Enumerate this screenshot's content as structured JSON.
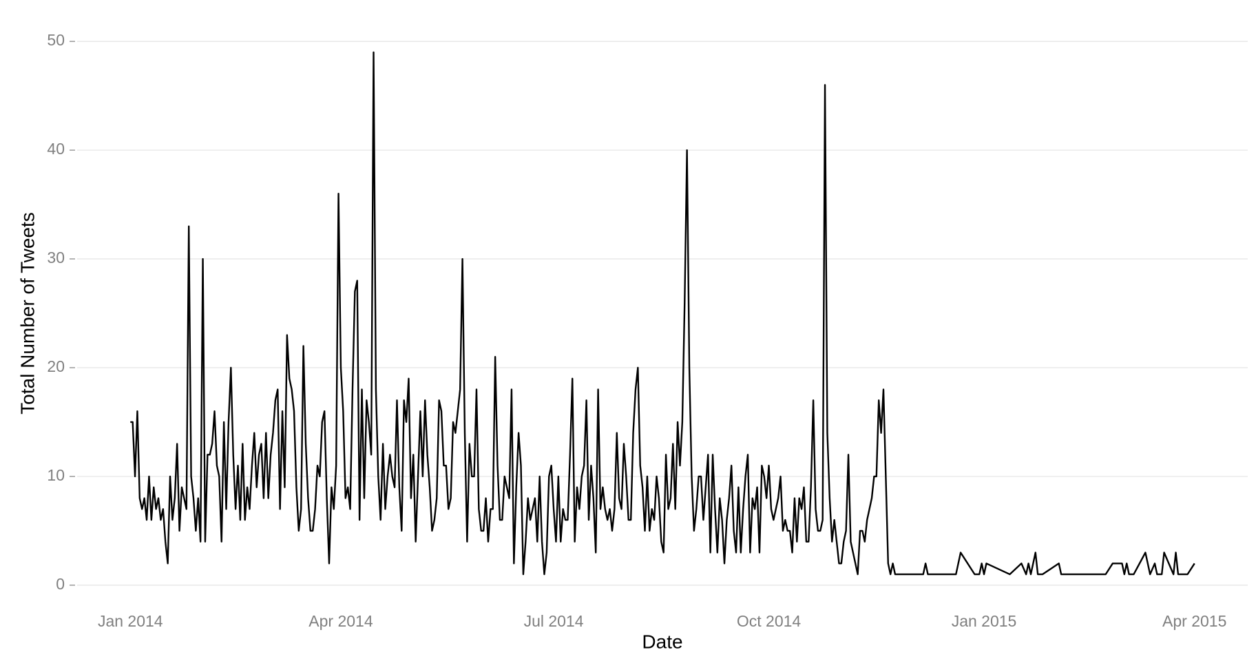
{
  "chart_data": {
    "type": "line",
    "x_label": "Date",
    "y_label": "Total Number of Tweets",
    "x": [
      0,
      1,
      2,
      3,
      4,
      5,
      6,
      7,
      8,
      9,
      10,
      11,
      12,
      13,
      14,
      15,
      16,
      17,
      18,
      19,
      20,
      21,
      22,
      23,
      24,
      25,
      26,
      27,
      28,
      29,
      30,
      31,
      32,
      33,
      34,
      35,
      36,
      37,
      38,
      39,
      40,
      41,
      42,
      43,
      44,
      45,
      46,
      47,
      48,
      49,
      50,
      51,
      52,
      53,
      54,
      55,
      56,
      57,
      58,
      59,
      60,
      61,
      62,
      63,
      64,
      65,
      66,
      67,
      68,
      69,
      70,
      71,
      72,
      73,
      74,
      75,
      76,
      77,
      78,
      79,
      80,
      81,
      82,
      83,
      84,
      85,
      86,
      87,
      88,
      89,
      90,
      91,
      92,
      93,
      94,
      95,
      96,
      97,
      98,
      99,
      100,
      101,
      102,
      103,
      104,
      105,
      106,
      107,
      108,
      109,
      110,
      111,
      112,
      113,
      114,
      115,
      116,
      117,
      118,
      119,
      120,
      121,
      122,
      123,
      124,
      125,
      126,
      127,
      128,
      129,
      130,
      131,
      132,
      133,
      134,
      135,
      136,
      137,
      138,
      139,
      140,
      141,
      142,
      143,
      144,
      145,
      146,
      147,
      148,
      149,
      150,
      151,
      152,
      153,
      154,
      155,
      156,
      157,
      158,
      159,
      160,
      161,
      162,
      163,
      164,
      165,
      166,
      167,
      168,
      169,
      170,
      171,
      172,
      173,
      174,
      175,
      176,
      177,
      178,
      179,
      180,
      181,
      182,
      183,
      184,
      185,
      186,
      187,
      188,
      189,
      190,
      191,
      192,
      193,
      194,
      195,
      196,
      197,
      198,
      199,
      200,
      201,
      202,
      203,
      204,
      205,
      206,
      207,
      208,
      209,
      210,
      211,
      212,
      213,
      214,
      215,
      216,
      217,
      218,
      219,
      220,
      221,
      222,
      223,
      224,
      225,
      226,
      227,
      228,
      229,
      230,
      231,
      232,
      233,
      234,
      235,
      236,
      237,
      238,
      239,
      240,
      241,
      242,
      243,
      244,
      245,
      246,
      247,
      248,
      249,
      250,
      251,
      252,
      253,
      254,
      255,
      256,
      257,
      258,
      259,
      260,
      261,
      262,
      263,
      264,
      265,
      266,
      267,
      268,
      269,
      270,
      271,
      272,
      273,
      274,
      275,
      276,
      277,
      278,
      279,
      280,
      281,
      282,
      283,
      284,
      285,
      286,
      287,
      288,
      289,
      290,
      291,
      292,
      293,
      294,
      295,
      296,
      297,
      298,
      299,
      300,
      301,
      302,
      303,
      304,
      305,
      306,
      307,
      308,
      309,
      310,
      311,
      312,
      313,
      314,
      315,
      316,
      317,
      318,
      319,
      320,
      321,
      322,
      323,
      324,
      325,
      326,
      327,
      339,
      340,
      341,
      353,
      355,
      361,
      363,
      364,
      365,
      366,
      376,
      381,
      383,
      384,
      385,
      387,
      388,
      390,
      397,
      398,
      417,
      420,
      424,
      425,
      426,
      427,
      429,
      434,
      436,
      438,
      439,
      441,
      442,
      446,
      447,
      448,
      452,
      455
    ],
    "values": [
      15,
      15,
      10,
      16,
      8,
      7,
      8,
      6,
      10,
      6,
      9,
      7,
      8,
      6,
      7,
      4,
      2,
      10,
      6,
      8,
      13,
      5,
      9,
      8,
      7,
      33,
      10,
      8,
      5,
      8,
      4,
      30,
      4,
      12,
      12,
      13,
      16,
      11,
      10,
      4,
      15,
      7,
      15,
      20,
      12,
      7,
      11,
      6,
      13,
      6,
      9,
      7,
      11,
      14,
      9,
      12,
      13,
      8,
      14,
      8,
      12,
      14,
      17,
      18,
      7,
      16,
      9,
      23,
      19,
      18,
      16,
      9,
      5,
      7,
      22,
      13,
      8,
      5,
      5,
      7,
      11,
      10,
      15,
      16,
      8,
      2,
      9,
      7,
      11,
      36,
      20,
      16,
      8,
      9,
      7,
      18,
      27,
      28,
      6,
      18,
      8,
      17,
      15,
      12,
      49,
      18,
      10,
      6,
      13,
      7,
      10,
      12,
      10,
      9,
      17,
      9,
      5,
      17,
      15,
      19,
      8,
      12,
      4,
      10,
      16,
      10,
      17,
      12,
      9,
      5,
      6,
      8,
      17,
      16,
      11,
      11,
      7,
      8,
      15,
      14,
      16,
      18,
      30,
      14,
      4,
      13,
      10,
      10,
      18,
      7,
      5,
      5,
      8,
      4,
      7,
      7,
      21,
      11,
      6,
      6,
      10,
      9,
      8,
      18,
      2,
      9,
      14,
      11,
      1,
      4,
      8,
      6,
      7,
      8,
      4,
      10,
      4,
      1,
      3,
      10,
      11,
      7,
      4,
      10,
      4,
      7,
      6,
      6,
      12,
      19,
      4,
      9,
      7,
      10,
      11,
      17,
      6,
      11,
      8,
      3,
      18,
      7,
      9,
      7,
      6,
      7,
      5,
      7,
      14,
      8,
      7,
      13,
      10,
      6,
      6,
      14,
      18,
      20,
      11,
      9,
      5,
      10,
      5,
      7,
      6,
      10,
      8,
      4,
      3,
      12,
      7,
      8,
      13,
      7,
      15,
      11,
      15,
      26,
      40,
      20,
      10,
      5,
      7,
      10,
      10,
      6,
      9,
      12,
      3,
      12,
      7,
      3,
      8,
      6,
      2,
      6,
      8,
      11,
      5,
      3,
      9,
      3,
      7,
      10,
      12,
      3,
      8,
      7,
      9,
      3,
      11,
      10,
      8,
      11,
      7,
      6,
      7,
      8,
      10,
      5,
      6,
      5,
      5,
      3,
      8,
      4,
      8,
      7,
      9,
      4,
      4,
      9,
      17,
      7,
      5,
      5,
      6,
      46,
      14,
      8,
      4,
      6,
      4,
      2,
      2,
      4,
      5,
      12,
      4,
      3,
      2,
      1,
      5,
      5,
      4,
      6,
      7,
      8,
      10,
      10,
      17,
      14,
      18,
      10,
      2,
      1,
      2,
      1,
      1,
      2,
      1,
      1,
      3,
      1,
      1,
      2,
      1,
      2,
      1,
      2,
      1,
      2,
      1,
      3,
      1,
      1,
      2,
      1,
      1,
      2,
      2,
      1,
      2,
      1,
      1,
      3,
      1,
      2,
      1,
      1,
      3,
      1,
      3,
      1,
      1,
      2
    ],
    "color": "#000000",
    "xlim": [
      -22.75,
      477.75
    ],
    "xticks": [
      {
        "value": 0,
        "label": "Jan 2014"
      },
      {
        "value": 90,
        "label": "Apr 2014"
      },
      {
        "value": 181,
        "label": "Jul 2014"
      },
      {
        "value": 273,
        "label": "Oct 2014"
      },
      {
        "value": 365,
        "label": "Jan 2015"
      },
      {
        "value": 455,
        "label": "Apr 2015"
      }
    ],
    "ylim": [
      -1.4,
      51.4
    ],
    "yticks": [
      0,
      10,
      20,
      30,
      40,
      50
    ],
    "grid": true
  }
}
